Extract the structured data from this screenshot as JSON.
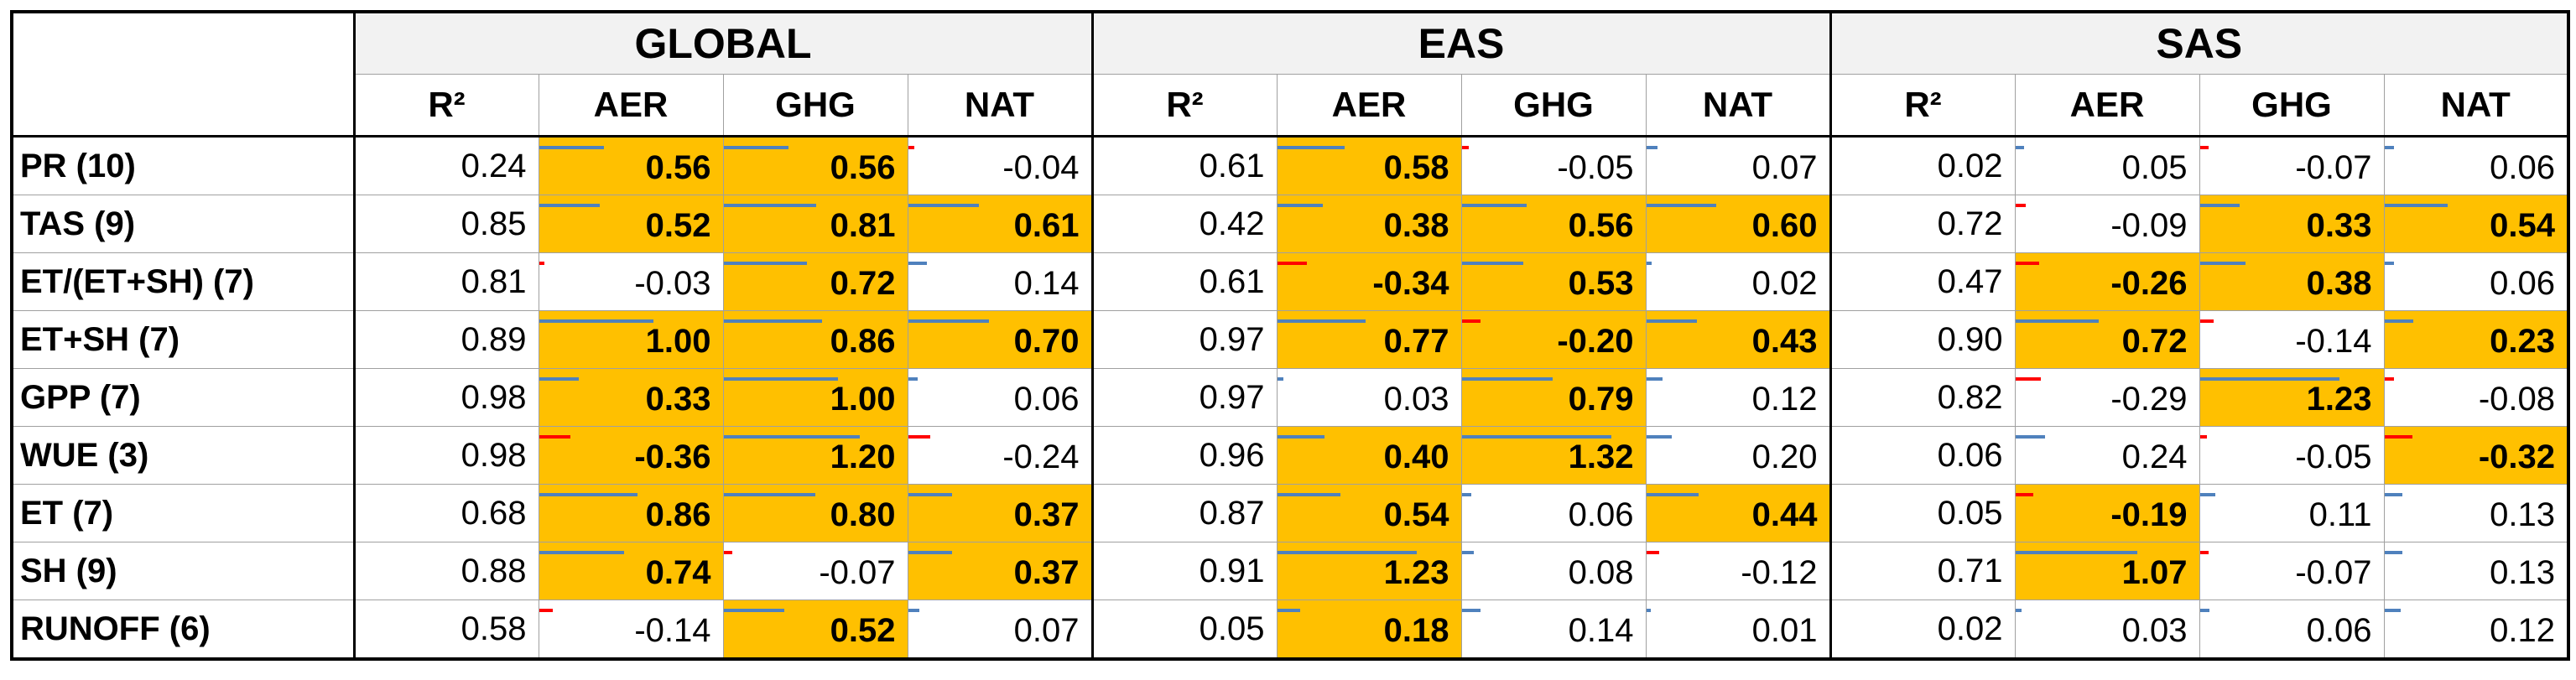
{
  "table": {
    "regions": [
      "GLOBAL",
      "EAS",
      "SAS"
    ],
    "columns": [
      "R²",
      "AER",
      "GHG",
      "NAT"
    ],
    "highlight_color": "#ffc000",
    "positive_color": "#4f81bd",
    "negative_color": "#ff0000",
    "rows": [
      {
        "label": "PR (10)",
        "cells": [
          "0.24",
          "0.56",
          "0.56",
          "-0.04",
          "0.61",
          "0.58",
          "-0.05",
          "0.07",
          "0.02",
          "0.05",
          "-0.07",
          "0.06"
        ],
        "highlight": [
          false,
          true,
          true,
          false,
          false,
          true,
          false,
          false,
          false,
          false,
          false,
          false
        ]
      },
      {
        "label": "TAS (9)",
        "cells": [
          "0.85",
          "0.52",
          "0.81",
          "0.61",
          "0.42",
          "0.38",
          "0.56",
          "0.60",
          "0.72",
          "-0.09",
          "0.33",
          "0.54"
        ],
        "highlight": [
          false,
          true,
          true,
          true,
          false,
          true,
          true,
          true,
          false,
          false,
          true,
          true
        ]
      },
      {
        "label": "ET/(ET+SH) (7)",
        "cells": [
          "0.81",
          "-0.03",
          "0.72",
          "0.14",
          "0.61",
          "-0.34",
          "0.53",
          "0.02",
          "0.47",
          "-0.26",
          "0.38",
          "0.06"
        ],
        "highlight": [
          false,
          false,
          true,
          false,
          false,
          true,
          true,
          false,
          false,
          true,
          true,
          false
        ]
      },
      {
        "label": "ET+SH (7)",
        "cells": [
          "0.89",
          "1.00",
          "0.86",
          "0.70",
          "0.97",
          "0.77",
          "-0.20",
          "0.43",
          "0.90",
          "0.72",
          "-0.14",
          "0.23"
        ],
        "highlight": [
          false,
          true,
          true,
          true,
          false,
          true,
          true,
          true,
          false,
          true,
          false,
          true
        ]
      },
      {
        "label": "GPP (7)",
        "cells": [
          "0.98",
          "0.33",
          "1.00",
          "0.06",
          "0.97",
          "0.03",
          "0.79",
          "0.12",
          "0.82",
          "-0.29",
          "1.23",
          "-0.08"
        ],
        "highlight": [
          false,
          true,
          true,
          false,
          false,
          false,
          true,
          false,
          false,
          false,
          true,
          false
        ]
      },
      {
        "label": "WUE (3)",
        "cells": [
          "0.98",
          "-0.36",
          "1.20",
          "-0.24",
          "0.96",
          "0.40",
          "1.32",
          "0.20",
          "0.06",
          "0.24",
          "-0.05",
          "-0.32"
        ],
        "highlight": [
          false,
          true,
          true,
          false,
          false,
          true,
          true,
          false,
          false,
          false,
          false,
          true
        ]
      },
      {
        "label": "ET (7)",
        "cells": [
          "0.68",
          "0.86",
          "0.80",
          "0.37",
          "0.87",
          "0.54",
          "0.06",
          "0.44",
          "0.05",
          "-0.19",
          "0.11",
          "0.13"
        ],
        "highlight": [
          false,
          true,
          true,
          true,
          false,
          true,
          false,
          true,
          false,
          true,
          false,
          false
        ]
      },
      {
        "label": "SH (9)",
        "cells": [
          "0.88",
          "0.74",
          "-0.07",
          "0.37",
          "0.91",
          "1.23",
          "0.08",
          "-0.12",
          "0.71",
          "1.07",
          "-0.07",
          "0.13"
        ],
        "highlight": [
          false,
          true,
          false,
          true,
          false,
          true,
          false,
          false,
          false,
          true,
          false,
          false
        ]
      },
      {
        "label": "RUNOFF (6)",
        "cells": [
          "0.58",
          "-0.14",
          "0.52",
          "0.07",
          "0.05",
          "0.18",
          "0.14",
          "0.01",
          "0.02",
          "0.03",
          "0.06",
          "0.12"
        ],
        "highlight": [
          false,
          false,
          true,
          false,
          false,
          true,
          false,
          false,
          false,
          false,
          false,
          false
        ]
      }
    ]
  }
}
